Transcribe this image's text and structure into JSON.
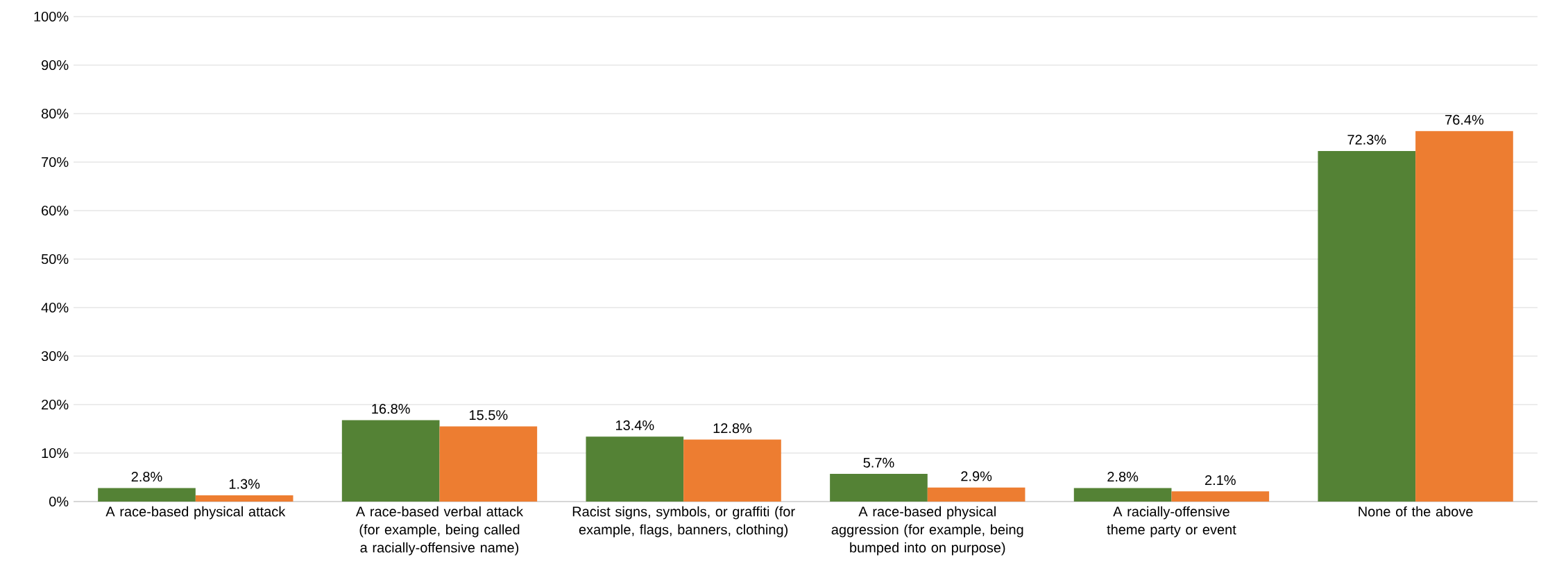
{
  "chart_data": {
    "type": "bar",
    "categories": [
      "A race-based physical attack",
      "A race-based verbal attack (for example, being called a racially-offensive name)",
      "Racist signs, symbols, or graffiti (for example, flags, banners, clothing)",
      "A race-based physical aggression (for example, being bumped into on purpose)",
      "A racially-offensive theme party or event",
      "None of the above"
    ],
    "series": [
      {
        "color": "#548235",
        "values": [
          2.8,
          16.8,
          13.4,
          5.7,
          2.8,
          72.3
        ],
        "value_labels": [
          "2.8%",
          "16.8%",
          "13.4%",
          "5.7%",
          "2.8%",
          "72.3%"
        ]
      },
      {
        "color": "#ed7d31",
        "values": [
          1.3,
          15.5,
          12.8,
          2.9,
          2.1,
          76.4
        ],
        "value_labels": [
          "1.3%",
          "15.5%",
          "12.8%",
          "2.9%",
          "2.1%",
          "76.4%"
        ]
      }
    ],
    "ylim": [
      0,
      100
    ],
    "yticks": [
      {
        "value": 0,
        "label": "0%"
      },
      {
        "value": 10,
        "label": "10%"
      },
      {
        "value": 20,
        "label": "20%"
      },
      {
        "value": 30,
        "label": "30%"
      },
      {
        "value": 40,
        "label": "40%"
      },
      {
        "value": 50,
        "label": "50%"
      },
      {
        "value": 60,
        "label": "60%"
      },
      {
        "value": 70,
        "label": "70%"
      },
      {
        "value": 80,
        "label": "80%"
      },
      {
        "value": 90,
        "label": "90%"
      },
      {
        "value": 100,
        "label": "100%"
      }
    ],
    "grid": "y"
  }
}
